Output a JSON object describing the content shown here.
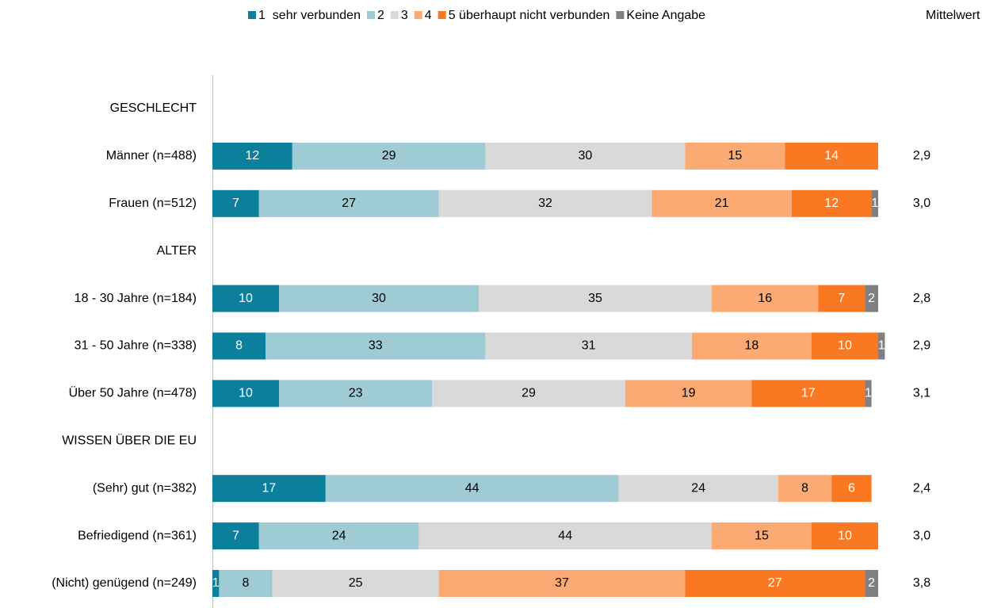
{
  "chart_data": {
    "type": "stacked-bar-horizontal",
    "categories": [
      "GESCHLECHT",
      "Männer (n=488)",
      "Frauen (n=512)",
      "ALTER",
      "18 - 30 Jahre (n=184)",
      "31 - 50 Jahre (n=338)",
      "Über 50 Jahre (n=478)",
      "WISSEN ÜBER DIE EU",
      "(Sehr) gut (n=382)",
      "Befriedigend (n=361)",
      "(Nicht) genügend (n=249)"
    ],
    "xlim": [
      0,
      100
    ],
    "series": [
      {
        "name": "1  sehr verbunden",
        "color": "#0b7f9b",
        "values": [
          null,
          12,
          7,
          null,
          10,
          8,
          10,
          null,
          17,
          7,
          1
        ]
      },
      {
        "name": "2",
        "color": "#9fcbd4",
        "values": [
          null,
          29,
          27,
          null,
          30,
          33,
          23,
          null,
          44,
          24,
          8
        ]
      },
      {
        "name": "3",
        "color": "#d9d9d9",
        "values": [
          null,
          30,
          32,
          null,
          35,
          31,
          29,
          null,
          24,
          44,
          25
        ]
      },
      {
        "name": "4",
        "color": "#fbaa74",
        "values": [
          null,
          15,
          21,
          null,
          16,
          18,
          19,
          null,
          8,
          15,
          37
        ]
      },
      {
        "name": "5 überhaupt nicht verbunden",
        "color": "#fb7822",
        "values": [
          null,
          14,
          12,
          null,
          7,
          10,
          17,
          null,
          6,
          10,
          27
        ]
      },
      {
        "name": "Keine Angabe",
        "color": "#808080",
        "values": [
          null,
          null,
          1,
          null,
          2,
          1,
          1,
          null,
          null,
          null,
          2
        ]
      }
    ],
    "mean": {
      "name": "Mittelwert",
      "values": [
        null,
        2.9,
        3.0,
        null,
        2.8,
        2.9,
        3.1,
        null,
        2.4,
        3.0,
        3.8
      ],
      "value_labels": [
        null,
        "2,9",
        "3,0",
        null,
        "2,8",
        "2,9",
        "3,1",
        null,
        "2,4",
        "3,0",
        "3,8"
      ]
    }
  }
}
